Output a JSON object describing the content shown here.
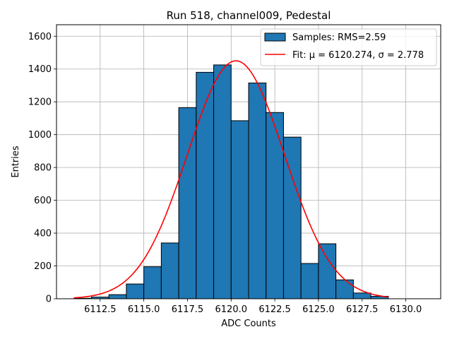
{
  "chart_data": {
    "type": "bar",
    "title": "Run 518, channel009, Pedestal",
    "xlabel": "ADC Counts",
    "ylabel": "Entries",
    "xlim": [
      6110.0,
      6132.0
    ],
    "ylim": [
      0,
      1670
    ],
    "x_ticks": [
      6112.5,
      6115.0,
      6117.5,
      6120.0,
      6122.5,
      6125.0,
      6127.5,
      6130.0
    ],
    "x_tick_labels": [
      "6112.5",
      "6115.0",
      "6117.5",
      "6120.0",
      "6122.5",
      "6125.0",
      "6127.5",
      "6130.0"
    ],
    "y_ticks": [
      0,
      200,
      400,
      600,
      800,
      1000,
      1200,
      1400,
      1600
    ],
    "y_tick_labels": [
      "0",
      "200",
      "400",
      "600",
      "800",
      "1000",
      "1200",
      "1400",
      "1600"
    ],
    "grid": true,
    "legend_position": "top-right",
    "histogram": {
      "name": "Samples: RMS=2.59",
      "color": "#1f77b4",
      "edge_color": "#000000",
      "bin_edges": [
        6111,
        6112,
        6113,
        6114,
        6115,
        6116,
        6117,
        6118,
        6119,
        6120,
        6121,
        6122,
        6123,
        6124,
        6125,
        6126,
        6127,
        6128,
        6129
      ],
      "values": [
        3,
        10,
        25,
        90,
        195,
        340,
        1165,
        1380,
        1425,
        1085,
        1315,
        1135,
        985,
        215,
        335,
        115,
        35,
        15
      ]
    },
    "fit": {
      "name": "Fit: μ = 6120.274, σ = 2.778",
      "color": "#ff0000",
      "mu": 6120.274,
      "sigma": 2.778,
      "amplitude": 1450,
      "x_range": [
        6111,
        6129
      ]
    }
  }
}
